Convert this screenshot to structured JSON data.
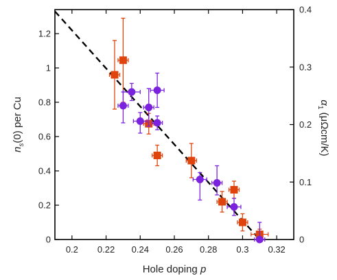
{
  "chart_data": {
    "type": "scatter",
    "xlabel": {
      "text": "Hole doping ",
      "var": "p"
    },
    "ylabel_left": {
      "pre": "n",
      "sub": "s",
      "post": "(0) per Cu"
    },
    "ylabel_right": {
      "pre": "α",
      "sub": "1",
      "post": " (μΩcm/K)"
    },
    "xlim": [
      0.19,
      0.33
    ],
    "ylim_left": [
      0,
      1.34
    ],
    "ylim_right": [
      0,
      0.4
    ],
    "x_ticks": [
      0.2,
      0.22,
      0.24,
      0.26,
      0.28,
      0.3,
      0.32
    ],
    "x_tick_labels": [
      "0.2",
      "0.22",
      "0.24",
      "0.26",
      "0.28",
      "0.3",
      "0.32"
    ],
    "y_left_ticks": [
      0,
      0.2,
      0.4,
      0.6,
      0.8,
      1,
      1.2
    ],
    "y_left_tick_labels": [
      "0",
      "0.2",
      "0.4",
      "0.6",
      "0.8",
      "1",
      "1.2"
    ],
    "y_right_ticks": [
      0,
      0.1,
      0.2,
      0.3,
      0.4
    ],
    "y_right_tick_labels": [
      "0",
      "0.1",
      "0.2",
      "0.3",
      "0.4"
    ],
    "fit_line": {
      "x": [
        0.19,
        0.31
      ],
      "y": [
        1.33,
        0.0
      ],
      "color": "#000000",
      "style": "dashed"
    },
    "series": [
      {
        "axis": "left",
        "marker": "square",
        "color": "#e0440e",
        "points": [
          {
            "x": 0.225,
            "y": 0.96,
            "xerr": 0.003,
            "yerr_up": 0.2,
            "yerr_down": 0.2
          },
          {
            "x": 0.23,
            "y": 1.045,
            "xerr": 0.003,
            "yerr_up": 0.245,
            "yerr_down": 0.245
          },
          {
            "x": 0.245,
            "y": 0.675,
            "xerr": 0.003,
            "yerr_up": 0.06,
            "yerr_down": 0.06
          },
          {
            "x": 0.25,
            "y": 0.49,
            "xerr": 0.003,
            "yerr_up": 0.06,
            "yerr_down": 0.06
          },
          {
            "x": 0.27,
            "y": 0.46,
            "xerr": 0.003,
            "yerr_up": 0.1,
            "yerr_down": 0.1
          },
          {
            "x": 0.288,
            "y": 0.22,
            "xerr": 0.003,
            "yerr_up": 0.06,
            "yerr_down": 0.06
          },
          {
            "x": 0.295,
            "y": 0.29,
            "xerr": 0.003,
            "yerr_up": 0.05,
            "yerr_down": 0.05
          },
          {
            "x": 0.3,
            "y": 0.1,
            "xerr": 0.003,
            "yerr_up": 0.05,
            "yerr_down": 0.05
          },
          {
            "x": 0.31,
            "y": 0.03,
            "xerr": 0.005,
            "yerr_up": 0.03,
            "yerr_down": 0.03
          }
        ]
      },
      {
        "axis": "left",
        "marker": "circle",
        "color": "#7a22dd",
        "points": [
          {
            "x": 0.23,
            "y": 0.78,
            "xerr": 0.003,
            "yerr_up": 0.08,
            "yerr_down": 0.1
          },
          {
            "x": 0.235,
            "y": 0.86,
            "xerr": 0.005,
            "yerr_up": 0.05,
            "yerr_down": 0.05
          },
          {
            "x": 0.24,
            "y": 0.69,
            "xerr": 0.004,
            "yerr_up": 0.05,
            "yerr_down": 0.07
          },
          {
            "x": 0.245,
            "y": 0.77,
            "xerr": 0.003,
            "yerr_up": 0.11,
            "yerr_down": 0.11
          },
          {
            "x": 0.25,
            "y": 0.68,
            "xerr": 0.003,
            "yerr_up": 0.04,
            "yerr_down": 0.04
          },
          {
            "x": 0.25,
            "y": 0.87,
            "xerr": 0.004,
            "yerr_up": 0.1,
            "yerr_down": 0.1
          },
          {
            "x": 0.275,
            "y": 0.35,
            "xerr": 0.004,
            "yerr_up": 0.04,
            "yerr_down": 0.12
          },
          {
            "x": 0.285,
            "y": 0.33,
            "xerr": 0.003,
            "yerr_up": 0.1,
            "yerr_down": 0.07
          },
          {
            "x": 0.295,
            "y": 0.19,
            "xerr": 0.004,
            "yerr_up": 0.05,
            "yerr_down": 0.05
          },
          {
            "x": 0.31,
            "y": 0.0,
            "xerr": 0.003,
            "yerr_up": 0.1,
            "yerr_down": 0.0
          }
        ]
      }
    ]
  }
}
